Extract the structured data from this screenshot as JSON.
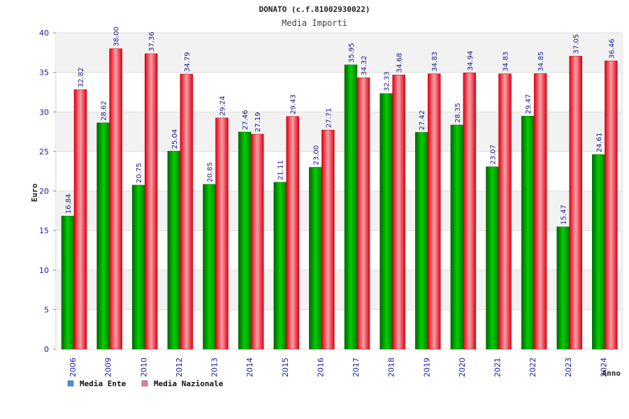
{
  "chart_data": {
    "type": "bar",
    "title": "DONATO (c.f.81002930022)",
    "subtitle": "Media Importi",
    "ylabel": "Euro",
    "xlabel": "Anno",
    "ylim": [
      0,
      40
    ],
    "yticks": [
      "0",
      "5",
      "10",
      "15",
      "20",
      "25",
      "30",
      "35",
      "40"
    ],
    "grid": true,
    "legend_position": "bottom-left",
    "categories": [
      "2006",
      "2009",
      "2010",
      "2012",
      "2013",
      "2014",
      "2015",
      "2016",
      "2017",
      "2018",
      "2019",
      "2020",
      "2021",
      "2022",
      "2023",
      "2024"
    ],
    "series": [
      {
        "name": "Media Ente",
        "color": "#00b800",
        "legend_color": "#4a90e2",
        "values": [
          16.84,
          28.62,
          20.75,
          25.04,
          20.85,
          27.46,
          21.11,
          23.0,
          35.95,
          32.33,
          27.42,
          28.35,
          23.07,
          29.47,
          15.47,
          24.61
        ],
        "labels": [
          "16.84",
          "28.62",
          "20.75",
          "25.04",
          "20.85",
          "27.46",
          "21.11",
          "23.00",
          "35.95",
          "32.33",
          "27.42",
          "28.35",
          "23.07",
          "29.47",
          "15.47",
          "24.61"
        ]
      },
      {
        "name": "Media Nazionale",
        "color": "#e8101a",
        "legend_color": "#e27aa0",
        "values": [
          32.82,
          38.0,
          37.36,
          34.79,
          29.24,
          27.19,
          29.43,
          27.71,
          34.32,
          34.68,
          34.83,
          34.94,
          34.83,
          34.85,
          37.05,
          36.46
        ],
        "labels": [
          "32.82",
          "38.00",
          "37.36",
          "34.79",
          "29.24",
          "27.19",
          "29.43",
          "27.71",
          "34.32",
          "34.68",
          "34.83",
          "34.94",
          "34.83",
          "34.85",
          "37.05",
          "36.46"
        ]
      }
    ]
  }
}
